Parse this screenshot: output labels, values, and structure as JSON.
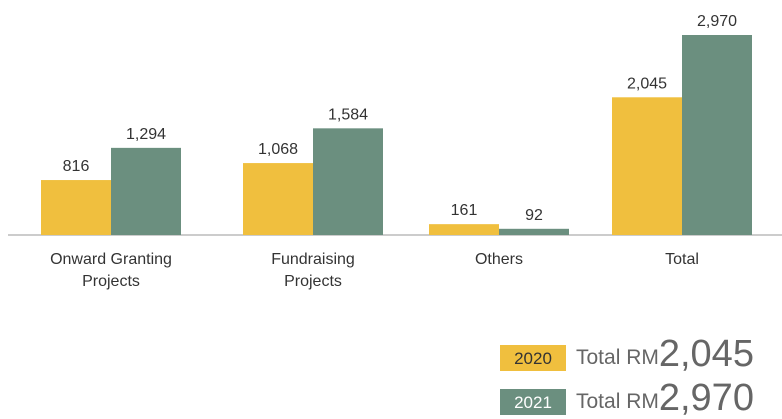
{
  "chart_data": {
    "type": "bar",
    "categories": [
      "Onward Granting\nProjects",
      "Fundraising\nProjects",
      "Others",
      "Total"
    ],
    "series": [
      {
        "name": "2020",
        "color": "#f0bf3e",
        "values": [
          816,
          1068,
          161,
          2045
        ],
        "value_labels": [
          "816",
          "1,068",
          "161",
          "2,045"
        ]
      },
      {
        "name": "2021",
        "color": "#6b8f7f",
        "values": [
          1294,
          1584,
          92,
          2970
        ],
        "value_labels": [
          "1,294",
          "1,584",
          "92",
          "2,970"
        ]
      }
    ],
    "legend": [
      {
        "label": "2020",
        "prefix": "Total RM",
        "total": "2,045"
      },
      {
        "label": "2021",
        "prefix": "Total RM",
        "total": "2,970"
      }
    ]
  }
}
